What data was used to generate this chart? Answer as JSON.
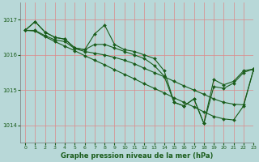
{
  "title": "Graphe pression niveau de la mer (hPa)",
  "bg_color": "#b8d8d8",
  "line_color": "#1a5c1a",
  "xlim": [
    -0.5,
    23
  ],
  "ylim": [
    1013.5,
    1017.5
  ],
  "yticks": [
    1014,
    1015,
    1016,
    1017
  ],
  "xticks": [
    0,
    1,
    2,
    3,
    4,
    5,
    6,
    7,
    8,
    9,
    10,
    11,
    12,
    13,
    14,
    15,
    16,
    17,
    18,
    19,
    20,
    21,
    22,
    23
  ],
  "series": [
    [
      1016.7,
      1016.95,
      1016.65,
      1016.5,
      1016.45,
      1016.2,
      1016.15,
      1016.6,
      1016.85,
      1016.3,
      1016.15,
      1016.1,
      1016.0,
      1015.9,
      1015.55,
      1014.65,
      1014.55,
      1014.75,
      1014.05,
      1015.3,
      1015.15,
      1015.25,
      1015.55,
      1015.6
    ],
    [
      1016.7,
      1016.95,
      1016.65,
      1016.5,
      1016.45,
      1016.2,
      1016.15,
      1016.3,
      1016.3,
      1016.2,
      1016.1,
      1016.0,
      1015.9,
      1015.7,
      1015.4,
      1014.65,
      1014.55,
      1014.75,
      1014.05,
      1015.1,
      1015.05,
      1015.2,
      1015.5,
      1015.6
    ],
    [
      1016.7,
      1016.7,
      1016.55,
      1016.43,
      1016.38,
      1016.18,
      1016.1,
      1016.05,
      1016.0,
      1015.93,
      1015.85,
      1015.75,
      1015.62,
      1015.5,
      1015.38,
      1015.25,
      1015.12,
      1015.0,
      1014.88,
      1014.75,
      1014.65,
      1014.6,
      1014.58,
      1015.58
    ],
    [
      1016.7,
      1016.68,
      1016.52,
      1016.38,
      1016.25,
      1016.12,
      1015.98,
      1015.85,
      1015.72,
      1015.58,
      1015.45,
      1015.32,
      1015.18,
      1015.05,
      1014.92,
      1014.78,
      1014.65,
      1014.52,
      1014.38,
      1014.25,
      1014.18,
      1014.15,
      1014.55,
      1015.58
    ]
  ]
}
